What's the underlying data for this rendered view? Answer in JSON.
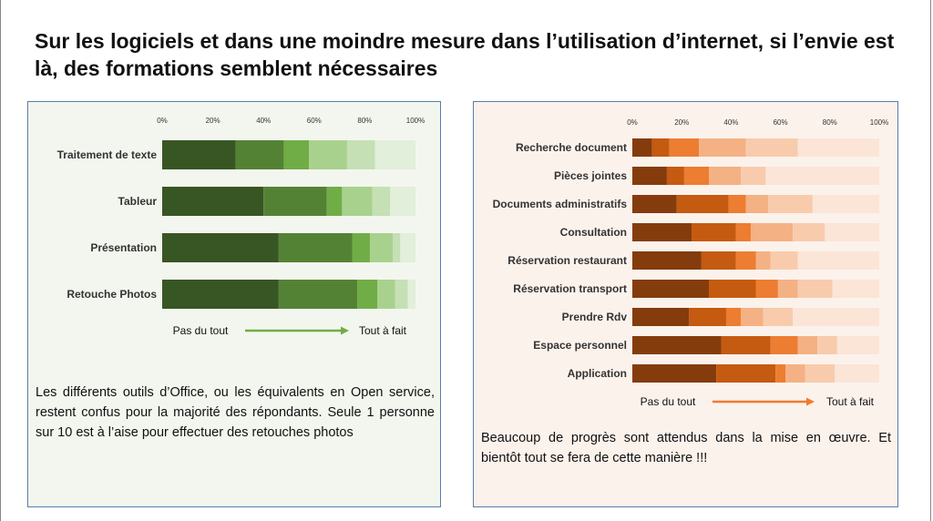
{
  "title": "Sur les logiciels et dans une moindre mesure dans l’utilisation d’internet, si l’envie est là, des formations semblent nécessaires",
  "left_text": "Les différents outils d’Office, ou les équivalents en Open service, restent confus pour la majorité des répondants. Seule 1 personne sur 10 est à l’aise pour effectuer des retouches photos",
  "right_text": "Beaucoup de progrès sont attendus dans la mise en œuvre. Et bientôt tout se fera de cette manière !!!",
  "chart_data": [
    {
      "type": "bar",
      "orientation": "horizontal",
      "stacked": true,
      "x_ticks": [
        "0%",
        "20%",
        "40%",
        "60%",
        "80%",
        "100%"
      ],
      "xlim": [
        0,
        100
      ],
      "categories": [
        "Traitement de texte",
        "Tableur",
        "Présentation",
        "Retouche Photos"
      ],
      "stacks": [
        [
          29,
          19,
          10,
          15,
          11,
          16
        ],
        [
          40,
          25,
          6,
          12,
          7,
          10
        ],
        [
          46,
          29,
          7,
          9,
          3,
          6
        ],
        [
          46,
          31,
          8,
          7,
          5,
          3
        ]
      ],
      "colors": [
        "#375623",
        "#548235",
        "#70ad47",
        "#a9d18e",
        "#c5e0b4",
        "#e2efda"
      ],
      "scale_low": "Pas du tout",
      "scale_high": "Tout à fait",
      "arrow_color": "#70ad47"
    },
    {
      "type": "bar",
      "orientation": "horizontal",
      "stacked": true,
      "x_ticks": [
        "0%",
        "20%",
        "40%",
        "60%",
        "80%",
        "100%"
      ],
      "xlim": [
        0,
        100
      ],
      "categories": [
        "Recherche document",
        "Pièces jointes",
        "Documents administratifs",
        "Consultation",
        "Réservation restaurant",
        "Réservation transport",
        "Prendre Rdv",
        "Espace personnel",
        "Application"
      ],
      "stacks": [
        [
          8,
          7,
          12,
          19,
          21,
          33
        ],
        [
          14,
          7,
          10,
          13,
          10,
          46
        ],
        [
          18,
          21,
          7,
          9,
          18,
          27
        ],
        [
          24,
          18,
          6,
          17,
          13,
          22
        ],
        [
          28,
          14,
          8,
          6,
          11,
          33
        ],
        [
          31,
          19,
          9,
          8,
          14,
          19
        ],
        [
          23,
          15,
          6,
          9,
          12,
          35
        ],
        [
          36,
          20,
          11,
          8,
          8,
          17
        ],
        [
          34,
          24,
          4,
          8,
          12,
          18
        ]
      ],
      "colors": [
        "#843c0c",
        "#c55a11",
        "#ed7d31",
        "#f4b183",
        "#f8cbad",
        "#fbe5d6"
      ],
      "scale_low": "Pas du tout",
      "scale_high": "Tout à fait",
      "arrow_color": "#ed7d31"
    }
  ]
}
